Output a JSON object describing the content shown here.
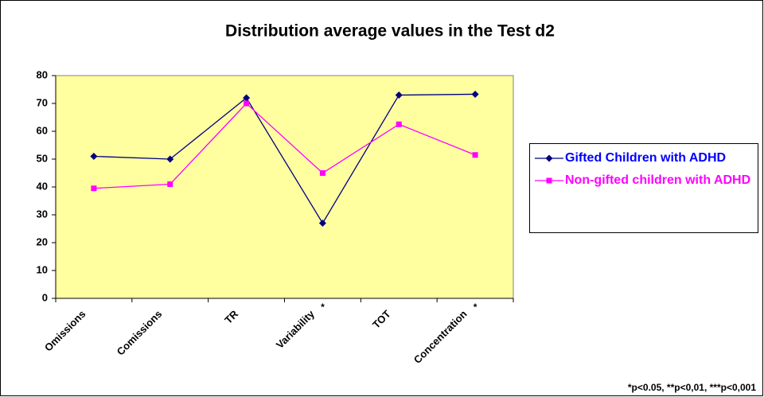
{
  "chart_data": {
    "type": "line",
    "title": "Distribution average values in the Test d2",
    "categories": [
      "Omissions",
      "Comissions",
      "TR",
      "Variability",
      "TOT",
      "Concentration"
    ],
    "significance": [
      null,
      null,
      null,
      "*",
      null,
      "*"
    ],
    "series": [
      {
        "name": "Gifted Children with ADHD",
        "color": "#000080",
        "label_color": "#0000ff",
        "marker": "diamond",
        "values": [
          51,
          50,
          72,
          27,
          73,
          73.3
        ]
      },
      {
        "name": "Non-gifted children with ADHD",
        "color": "#ff00ff",
        "label_color": "#ff00ff",
        "marker": "square",
        "values": [
          39.5,
          41,
          70,
          45,
          62.5,
          51.5
        ]
      }
    ],
    "ylim": [
      0,
      80
    ],
    "yticks": [
      0,
      10,
      20,
      30,
      40,
      50,
      60,
      70,
      80
    ],
    "plot_background": "#ffffa0",
    "legend": "right",
    "note": "*p<0.05, **p<0,01, ***p<0,001"
  }
}
